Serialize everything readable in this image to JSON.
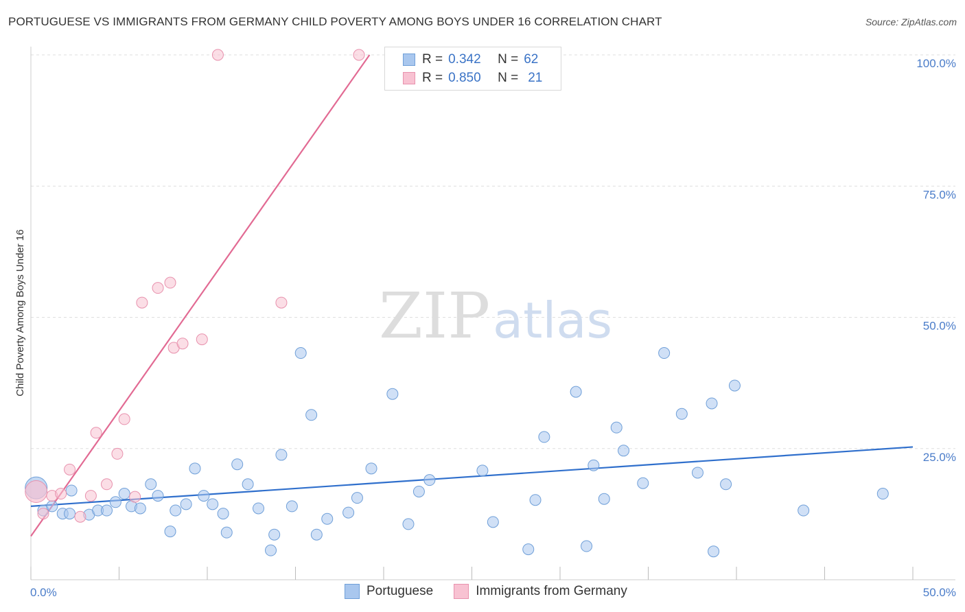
{
  "title": "PORTUGUESE VS IMMIGRANTS FROM GERMANY CHILD POVERTY AMONG BOYS UNDER 16 CORRELATION CHART",
  "source": "Source: ZipAtlas.com",
  "watermark": {
    "zip": "ZIP",
    "atlas": "atlas"
  },
  "legend": {
    "r_label": "R =",
    "n_label": "N =",
    "rows": [
      {
        "r": "0.342",
        "n": "62",
        "color": "#a9c7ee",
        "border": "#6f9fd8"
      },
      {
        "r": "0.850",
        "n": "21",
        "color": "#f8c2d2",
        "border": "#e891ad"
      }
    ]
  },
  "chart_data": {
    "type": "scatter",
    "title": "PORTUGUESE VS IMMIGRANTS FROM GERMANY CHILD POVERTY AMONG BOYS UNDER 16 CORRELATION CHART",
    "xlabel": "",
    "ylabel": "Child Poverty Among Boys Under 16",
    "xlim": [
      0,
      50
    ],
    "ylim": [
      0,
      100
    ],
    "x_tick_labels": [
      "0.0%",
      "50.0%"
    ],
    "y_tick_labels": [
      "100.0%",
      "75.0%",
      "50.0%",
      "25.0%"
    ],
    "y_ticks": [
      100,
      75,
      50,
      25
    ],
    "grid": true,
    "series": [
      {
        "name": "Portuguese",
        "color": "#a9c7ee",
        "stroke": "#6f9fd8",
        "line_color": "#2f6fcc",
        "r": "0.342",
        "n": "62",
        "trend": [
          [
            0,
            14.0
          ],
          [
            50,
            25.3
          ]
        ],
        "points": [
          [
            0.3,
            17.5,
            "big"
          ],
          [
            0.7,
            13.2
          ],
          [
            1.2,
            14.0
          ],
          [
            1.8,
            12.6
          ],
          [
            2.3,
            17.0
          ],
          [
            2.2,
            12.6
          ],
          [
            3.3,
            12.4
          ],
          [
            3.8,
            13.2
          ],
          [
            4.3,
            13.2
          ],
          [
            4.8,
            14.8
          ],
          [
            5.3,
            16.4
          ],
          [
            5.7,
            14.0
          ],
          [
            6.2,
            13.6
          ],
          [
            6.8,
            18.2
          ],
          [
            7.2,
            16.0
          ],
          [
            7.9,
            9.2
          ],
          [
            8.2,
            13.2
          ],
          [
            8.8,
            14.4
          ],
          [
            9.3,
            21.2
          ],
          [
            9.8,
            16.0
          ],
          [
            10.3,
            14.4
          ],
          [
            10.9,
            12.6
          ],
          [
            11.1,
            9.0
          ],
          [
            11.7,
            22.0
          ],
          [
            12.3,
            18.2
          ],
          [
            12.9,
            13.6
          ],
          [
            13.6,
            5.6
          ],
          [
            13.8,
            8.6
          ],
          [
            14.2,
            23.8
          ],
          [
            14.8,
            14.0
          ],
          [
            15.3,
            43.2
          ],
          [
            15.9,
            31.4
          ],
          [
            16.2,
            8.6
          ],
          [
            16.8,
            11.6
          ],
          [
            18.0,
            12.8
          ],
          [
            18.5,
            15.6
          ],
          [
            19.3,
            21.2
          ],
          [
            20.5,
            35.4
          ],
          [
            21.4,
            10.6
          ],
          [
            22.0,
            16.8
          ],
          [
            22.6,
            19.0
          ],
          [
            25.6,
            20.8
          ],
          [
            26.2,
            11.0
          ],
          [
            28.2,
            5.8
          ],
          [
            28.6,
            15.2
          ],
          [
            29.1,
            27.2
          ],
          [
            30.9,
            35.8
          ],
          [
            31.5,
            6.4
          ],
          [
            31.9,
            21.8
          ],
          [
            32.5,
            15.4
          ],
          [
            33.2,
            29.0
          ],
          [
            33.6,
            24.6
          ],
          [
            34.7,
            18.4
          ],
          [
            35.9,
            43.2
          ],
          [
            36.9,
            31.6
          ],
          [
            37.8,
            20.4
          ],
          [
            38.6,
            33.6
          ],
          [
            38.7,
            5.4
          ],
          [
            39.4,
            18.2
          ],
          [
            39.9,
            37.0
          ],
          [
            43.8,
            13.2
          ],
          [
            48.3,
            16.4
          ]
        ]
      },
      {
        "name": "Immigrants from Germany",
        "color": "#f8c2d2",
        "stroke": "#e891ad",
        "line_color": "#e26a93",
        "r": "0.850",
        "n": "21",
        "trend": [
          [
            0,
            8.3
          ],
          [
            19.2,
            100.0
          ]
        ],
        "points": [
          [
            0.3,
            16.8,
            "big"
          ],
          [
            0.7,
            12.6
          ],
          [
            1.2,
            16.0
          ],
          [
            1.7,
            16.4
          ],
          [
            2.2,
            21.0
          ],
          [
            2.8,
            12.0
          ],
          [
            3.4,
            16.0
          ],
          [
            3.7,
            28.0
          ],
          [
            4.3,
            18.2
          ],
          [
            4.9,
            24.0
          ],
          [
            5.3,
            30.6
          ],
          [
            5.9,
            15.8
          ],
          [
            6.3,
            52.8
          ],
          [
            7.2,
            55.6
          ],
          [
            7.9,
            56.6
          ],
          [
            8.1,
            44.2
          ],
          [
            8.6,
            45.0
          ],
          [
            9.7,
            45.8
          ],
          [
            10.6,
            100.0
          ],
          [
            14.2,
            52.8
          ],
          [
            18.6,
            100.0
          ]
        ]
      }
    ]
  },
  "bottom_legend": [
    {
      "label": "Portuguese",
      "color": "#a9c7ee",
      "border": "#6f9fd8"
    },
    {
      "label": "Immigrants from Germany",
      "color": "#f8c2d2",
      "border": "#e891ad"
    }
  ]
}
